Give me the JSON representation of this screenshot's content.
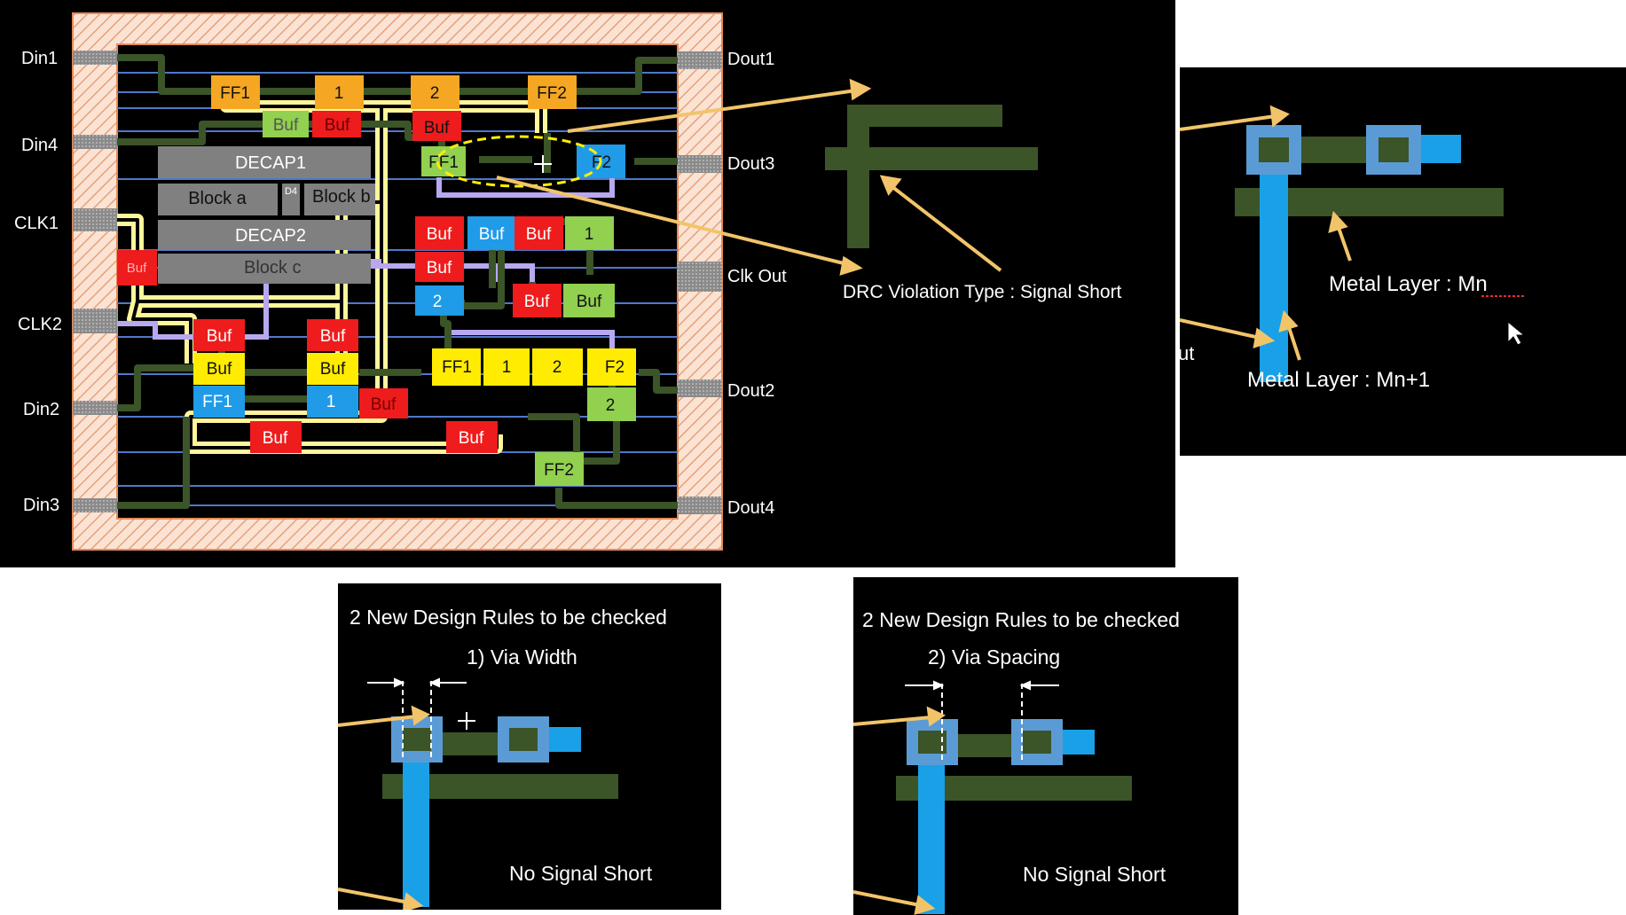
{
  "pins_left": [
    "Din1",
    "Din4",
    "CLK1",
    "CLK2",
    "Din2",
    "Din3"
  ],
  "pins_right": [
    "Dout1",
    "Dout3",
    "Clk Out",
    "Dout2",
    "Dout4"
  ],
  "blocks": {
    "decap1": "DECAP1",
    "block_a": "Block a",
    "d4": "D4",
    "block_b": "Block b",
    "decap2": "DECAP2",
    "block_c": "Block c"
  },
  "cells": {
    "ff1_top": "FF1",
    "one_top": "1",
    "two_top": "2",
    "ff2_top": "FF2",
    "buf_green_top": "Buf",
    "buf_red_top1": "Buf",
    "buf_red_top2": "Buf",
    "ff1_mid": "FF1",
    "ff2_mid": "F2",
    "buf_left": "Buf",
    "buf_r1": "Buf",
    "buf_b1": "Buf",
    "buf_r2": "Buf",
    "one_g": "1",
    "buf_r3": "Buf",
    "two_b": "2",
    "buf_r4": "Buf",
    "buf_g2": "Buf",
    "buf_r5": "Buf",
    "buf_r6": "Buf",
    "buf_y1": "Buf",
    "buf_y2": "Buf",
    "ff1_b": "FF1",
    "one_b": "1",
    "buf_r7": "Buf",
    "ff1_y": "FF1",
    "one_y": "1",
    "two_y": "2",
    "f2_y": "F2",
    "two_g": "2",
    "buf_r8": "Buf",
    "buf_r9": "Buf",
    "ff2_bot": "FF2"
  },
  "annotation_drc": "DRC Violation Type : Signal Short",
  "right_panel": {
    "metal_mn": "Metal Layer : Mn",
    "metal_mn1": "Metal Layer : Mn+1",
    "partial_text": "ut"
  },
  "bottom_left": {
    "title": "2 New Design Rules to be checked",
    "rule": "1) Via Width",
    "status": "No Signal Short"
  },
  "bottom_right": {
    "title": "2 New Design Rules to be checked",
    "rule": "2) Via Spacing",
    "status": "No Signal Short"
  },
  "colors": {
    "metal_green": "#3b5428",
    "via_blue": "#1aa0e6",
    "via_frame": "#5b9bd5",
    "arrow_yellow": "#f2c46a",
    "cell_orange": "#f5a623",
    "cell_red": "#ee1c1c",
    "cell_yellow": "#ffec00",
    "cell_lightgreen": "#92d050",
    "cell_blue": "#1f9be8",
    "block_gray": "#808080"
  }
}
